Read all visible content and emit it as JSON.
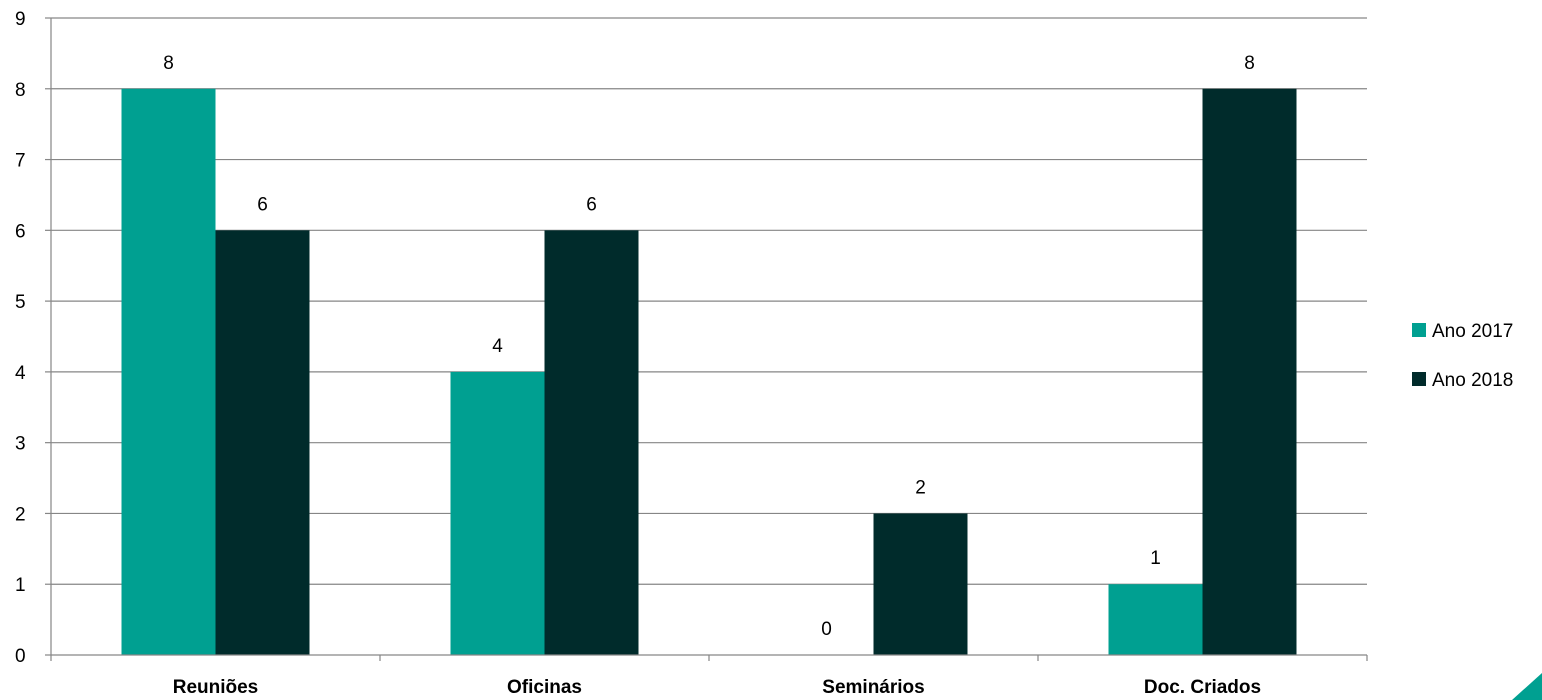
{
  "chart_data": {
    "type": "bar",
    "categories": [
      "Reuniões",
      "Oficinas",
      "Seminários",
      "Doc. Criados"
    ],
    "series": [
      {
        "name": "Ano 2017",
        "values": [
          8,
          4,
          0,
          1
        ],
        "color": "#00a091"
      },
      {
        "name": "Ano 2018",
        "values": [
          6,
          6,
          2,
          8
        ],
        "color": "#002b2b"
      }
    ],
    "ylim": [
      0,
      9
    ],
    "yticks": [
      0,
      1,
      2,
      3,
      4,
      5,
      6,
      7,
      8,
      9
    ],
    "grid": true,
    "legend": "right",
    "title": "",
    "xlabel": "",
    "ylabel": ""
  },
  "colors": {
    "gridline": "#868686",
    "axis": "#868686",
    "corner_accent": "#00a091"
  }
}
